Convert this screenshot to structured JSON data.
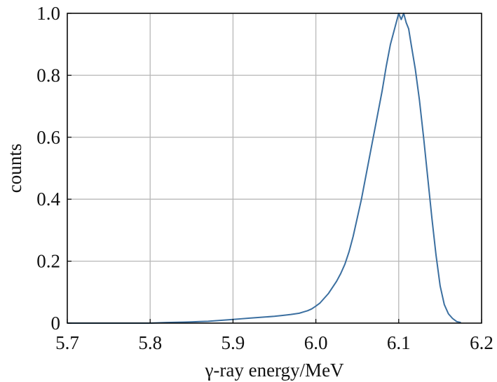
{
  "chart_data": {
    "type": "line",
    "title": "",
    "xlabel": "γ-ray energy/MeV",
    "ylabel": "counts",
    "xlim": [
      5.7,
      6.2
    ],
    "ylim": [
      0,
      1.0
    ],
    "grid": true,
    "x_ticks": [
      5.7,
      5.8,
      5.9,
      6.0,
      6.1,
      6.2
    ],
    "x_tick_labels": [
      "5.7",
      "5.8",
      "5.9",
      "6.0",
      "6.1",
      "6.2"
    ],
    "y_ticks": [
      0,
      0.2,
      0.4,
      0.6,
      0.8,
      1.0
    ],
    "y_tick_labels": [
      "0",
      "0.2",
      "0.4",
      "0.6",
      "0.8",
      "1.0"
    ],
    "line_color": "#3b6fa0",
    "series": [
      {
        "x": [
          5.7,
          5.75,
          5.8,
          5.82,
          5.84,
          5.85,
          5.86,
          5.87,
          5.88,
          5.89,
          5.9,
          5.91,
          5.92,
          5.93,
          5.94,
          5.95,
          5.96,
          5.97,
          5.98,
          5.985,
          5.99,
          5.995,
          6.0,
          6.005,
          6.01,
          6.015,
          6.02,
          6.025,
          6.03,
          6.035,
          6.04,
          6.045,
          6.05,
          6.055,
          6.06,
          6.065,
          6.07,
          6.075,
          6.08,
          6.085,
          6.09,
          6.095,
          6.1,
          6.103,
          6.106,
          6.109,
          6.112,
          6.115,
          6.12,
          6.125,
          6.13,
          6.135,
          6.14,
          6.145,
          6.15,
          6.155,
          6.16,
          6.165,
          6.17,
          6.175
        ],
        "y": [
          0.0,
          0.0,
          0.0,
          0.002,
          0.003,
          0.004,
          0.005,
          0.006,
          0.008,
          0.01,
          0.012,
          0.014,
          0.016,
          0.018,
          0.02,
          0.022,
          0.025,
          0.028,
          0.032,
          0.036,
          0.04,
          0.046,
          0.055,
          0.065,
          0.08,
          0.095,
          0.115,
          0.135,
          0.16,
          0.19,
          0.23,
          0.28,
          0.34,
          0.4,
          0.47,
          0.54,
          0.61,
          0.68,
          0.75,
          0.83,
          0.9,
          0.95,
          1.0,
          0.98,
          1.0,
          0.97,
          0.95,
          0.9,
          0.82,
          0.72,
          0.6,
          0.47,
          0.34,
          0.22,
          0.12,
          0.06,
          0.03,
          0.015,
          0.005,
          0.002
        ]
      }
    ]
  }
}
